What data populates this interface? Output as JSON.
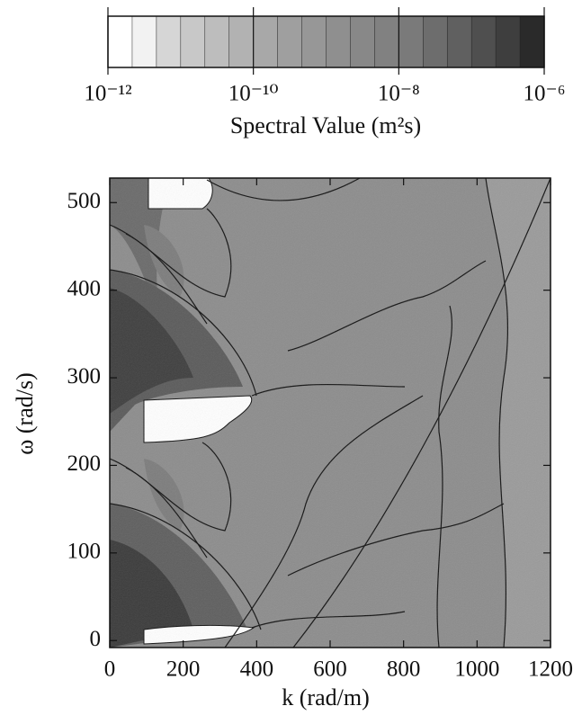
{
  "chart_data": {
    "type": "contour",
    "x_label": "k (rad/m)",
    "y_label": "ω (rad/s)",
    "xlim": [
      0,
      1200
    ],
    "xticks": [
      0,
      200,
      400,
      600,
      800,
      1000,
      1200
    ],
    "ylim": [
      -8,
      528
    ],
    "yticks": [
      0,
      100,
      200,
      300,
      400,
      500
    ],
    "colorbar": {
      "label": "Spectral Value (m²s)",
      "log_scale": true,
      "zlim": [
        1e-12,
        1e-06
      ],
      "zticks": [
        {
          "value": 1e-12,
          "label": "10⁻¹²"
        },
        {
          "value": 1e-10,
          "label": "10⁻¹⁰"
        },
        {
          "value": 1e-08,
          "label": "10⁻⁸"
        },
        {
          "value": 1e-06,
          "label": "10⁻⁶"
        }
      ],
      "colors": [
        "#ffffff",
        "#f2f2f2",
        "#d6d6d6",
        "#c8c8c8",
        "#bdbdbd",
        "#b2b2b2",
        "#a8a8a8",
        "#9f9f9f",
        "#979797",
        "#8f8f8f",
        "#888888",
        "#818181",
        "#7a7a7a",
        "#6d6d6d",
        "#606060",
        "#4f4f4f",
        "#3e3e3e",
        "#2a2a2a"
      ]
    }
  }
}
